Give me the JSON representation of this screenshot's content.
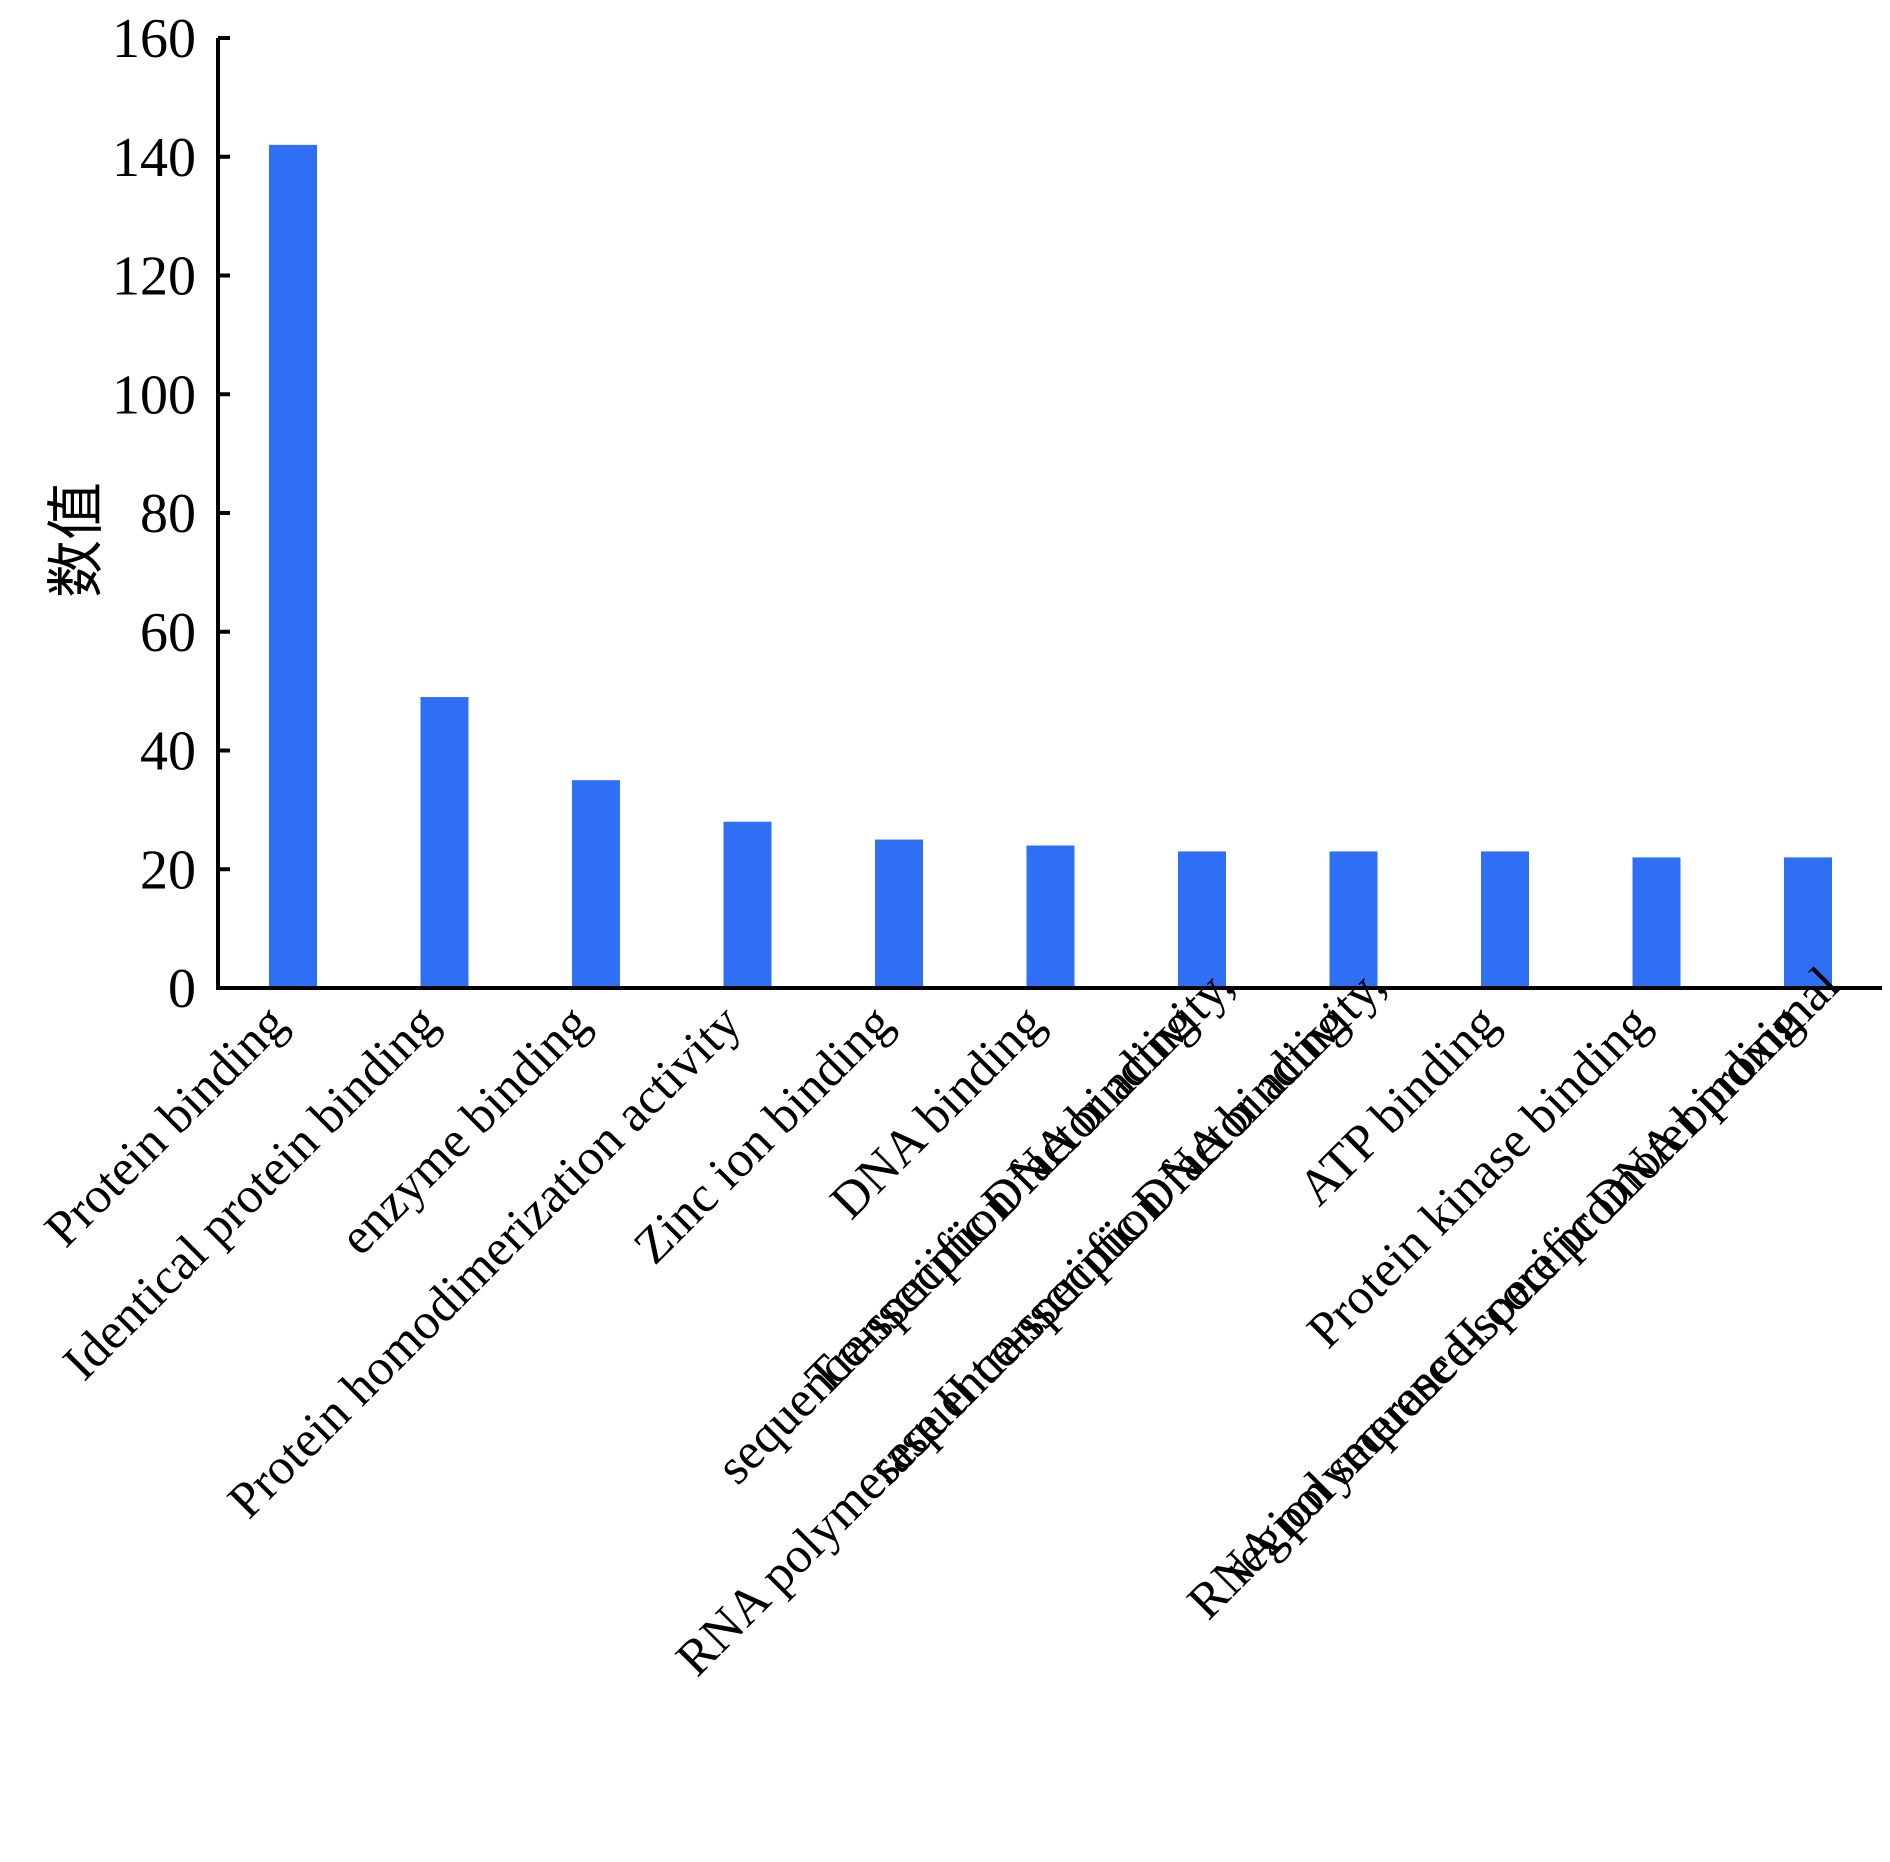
{
  "chart_data": {
    "type": "bar",
    "title": "",
    "xlabel": "",
    "ylabel": "数值",
    "ylim": [
      0,
      160
    ],
    "yticks": [
      0,
      20,
      40,
      60,
      80,
      100,
      120,
      140,
      160
    ],
    "grid": false,
    "bar_color": "#2f6ff5",
    "categories": [
      [
        "Protein binding"
      ],
      [
        "Identical protein binding"
      ],
      [
        "enzyme binding"
      ],
      [
        "Protein homodimerization activity"
      ],
      [
        "Zinc ion binding"
      ],
      [
        "DNA binding"
      ],
      [
        "Transcription factor activity,",
        "sequence-specific DNA binding"
      ],
      [
        "RNA polymerase II transcription factor activity,",
        "sequence-specific DNA binding"
      ],
      [
        "ATP binding"
      ],
      [
        "Protein kinase binding"
      ],
      [
        "RNA polymerase II core promoter proximal",
        "region sequence-specific DNA binding"
      ]
    ],
    "values": [
      142,
      49,
      35,
      28,
      25,
      24,
      23,
      23,
      23,
      22,
      22
    ]
  }
}
